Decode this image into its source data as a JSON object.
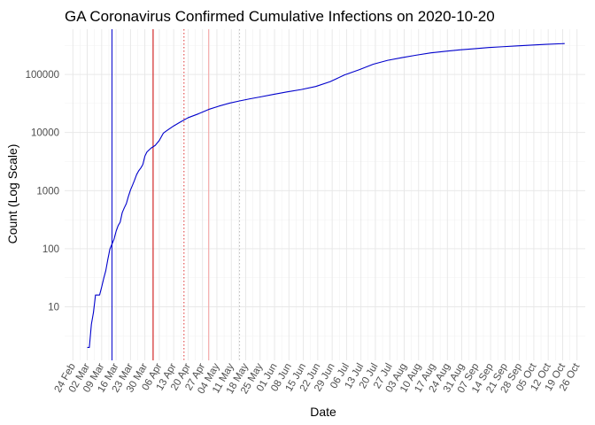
{
  "chart_data": {
    "type": "line",
    "title": "GA Coronavirus Confirmed Cumulative Infections on 2020-10-20",
    "xlabel": "Date",
    "ylabel": "Count (Log Scale)",
    "y_scale": "log10",
    "ylim": [
      1.2,
      600000
    ],
    "y_ticks": [
      10,
      100,
      1000,
      10000,
      100000
    ],
    "y_tick_labels": [
      "10",
      "100",
      "1000",
      "10000",
      "100000"
    ],
    "xlim": [
      "2020-02-20",
      "2020-10-30"
    ],
    "x_ticks": [
      "2020-02-24",
      "2020-03-02",
      "2020-03-09",
      "2020-03-16",
      "2020-03-23",
      "2020-03-30",
      "2020-04-06",
      "2020-04-13",
      "2020-04-20",
      "2020-04-27",
      "2020-05-04",
      "2020-05-11",
      "2020-05-18",
      "2020-05-25",
      "2020-06-01",
      "2020-06-08",
      "2020-06-15",
      "2020-06-22",
      "2020-06-29",
      "2020-07-06",
      "2020-07-13",
      "2020-07-20",
      "2020-07-27",
      "2020-08-03",
      "2020-08-10",
      "2020-08-17",
      "2020-08-24",
      "2020-08-31",
      "2020-09-07",
      "2020-09-14",
      "2020-09-21",
      "2020-09-28",
      "2020-10-05",
      "2020-10-12",
      "2020-10-19",
      "2020-10-26"
    ],
    "x_tick_labels": [
      "24 Feb",
      "02 Mar",
      "09 Mar",
      "16 Mar",
      "23 Mar",
      "30 Mar",
      "06 Apr",
      "13 Apr",
      "20 Apr",
      "27 Apr",
      "04 May",
      "11 May",
      "18 May",
      "25 May",
      "01 Jun",
      "08 Jun",
      "15 Jun",
      "22 Jun",
      "29 Jun",
      "06 Jul",
      "13 Jul",
      "20 Jul",
      "27 Jul",
      "03 Aug",
      "10 Aug",
      "17 Aug",
      "24 Aug",
      "31 Aug",
      "07 Sep",
      "14 Sep",
      "21 Sep",
      "28 Sep",
      "05 Oct",
      "12 Oct",
      "19 Oct",
      "26 Oct"
    ],
    "grid": true,
    "series": [
      {
        "color": "#0000cc",
        "x": [
          "2020-03-02",
          "2020-03-03",
          "2020-03-04",
          "2020-03-05",
          "2020-03-06",
          "2020-03-07",
          "2020-03-08",
          "2020-03-09",
          "2020-03-10",
          "2020-03-11",
          "2020-03-12",
          "2020-03-13",
          "2020-03-14",
          "2020-03-15",
          "2020-03-16",
          "2020-03-17",
          "2020-03-18",
          "2020-03-19",
          "2020-03-20",
          "2020-03-21",
          "2020-03-22",
          "2020-03-23",
          "2020-03-24",
          "2020-03-25",
          "2020-03-26",
          "2020-03-27",
          "2020-03-28",
          "2020-03-29",
          "2020-03-30",
          "2020-03-31",
          "2020-04-02",
          "2020-04-04",
          "2020-04-06",
          "2020-04-08",
          "2020-04-10",
          "2020-04-13",
          "2020-04-16",
          "2020-04-20",
          "2020-04-25",
          "2020-04-30",
          "2020-05-05",
          "2020-05-10",
          "2020-05-15",
          "2020-05-20",
          "2020-05-25",
          "2020-05-31",
          "2020-06-07",
          "2020-06-14",
          "2020-06-21",
          "2020-06-28",
          "2020-07-05",
          "2020-07-12",
          "2020-07-19",
          "2020-07-26",
          "2020-08-02",
          "2020-08-09",
          "2020-08-16",
          "2020-08-23",
          "2020-08-30",
          "2020-09-06",
          "2020-09-13",
          "2020-09-20",
          "2020-09-27",
          "2020-10-04",
          "2020-10-11",
          "2020-10-20"
        ],
        "y": [
          2,
          2,
          5,
          8,
          16,
          16,
          16,
          22,
          31,
          42,
          66,
          99,
          120,
          146,
          199,
          250,
          287,
          420,
          507,
          600,
          800,
          1026,
          1247,
          1525,
          1897,
          2198,
          2446,
          2809,
          3929,
          4638,
          5400,
          6000,
          7300,
          9800,
          11000,
          13000,
          15000,
          18000,
          21000,
          25000,
          28500,
          32000,
          35000,
          38000,
          41000,
          45000,
          50000,
          55000,
          62000,
          75000,
          98000,
          120000,
          150000,
          175000,
          195000,
          215000,
          235000,
          250000,
          265000,
          277000,
          290000,
          300000,
          310000,
          320000,
          330000,
          340000
        ]
      }
    ],
    "reference_lines": [
      {
        "x": "2020-03-14",
        "color": "#0000cc",
        "style": "solid"
      },
      {
        "x": "2020-04-03",
        "color": "#cc0000",
        "style": "solid"
      },
      {
        "x": "2020-04-18",
        "color": "#dd3333",
        "style": "dotted"
      },
      {
        "x": "2020-04-30",
        "color": "#f4a0a0",
        "style": "solid"
      },
      {
        "x": "2020-05-15",
        "color": "#bbbbbb",
        "style": "dotted"
      }
    ]
  }
}
